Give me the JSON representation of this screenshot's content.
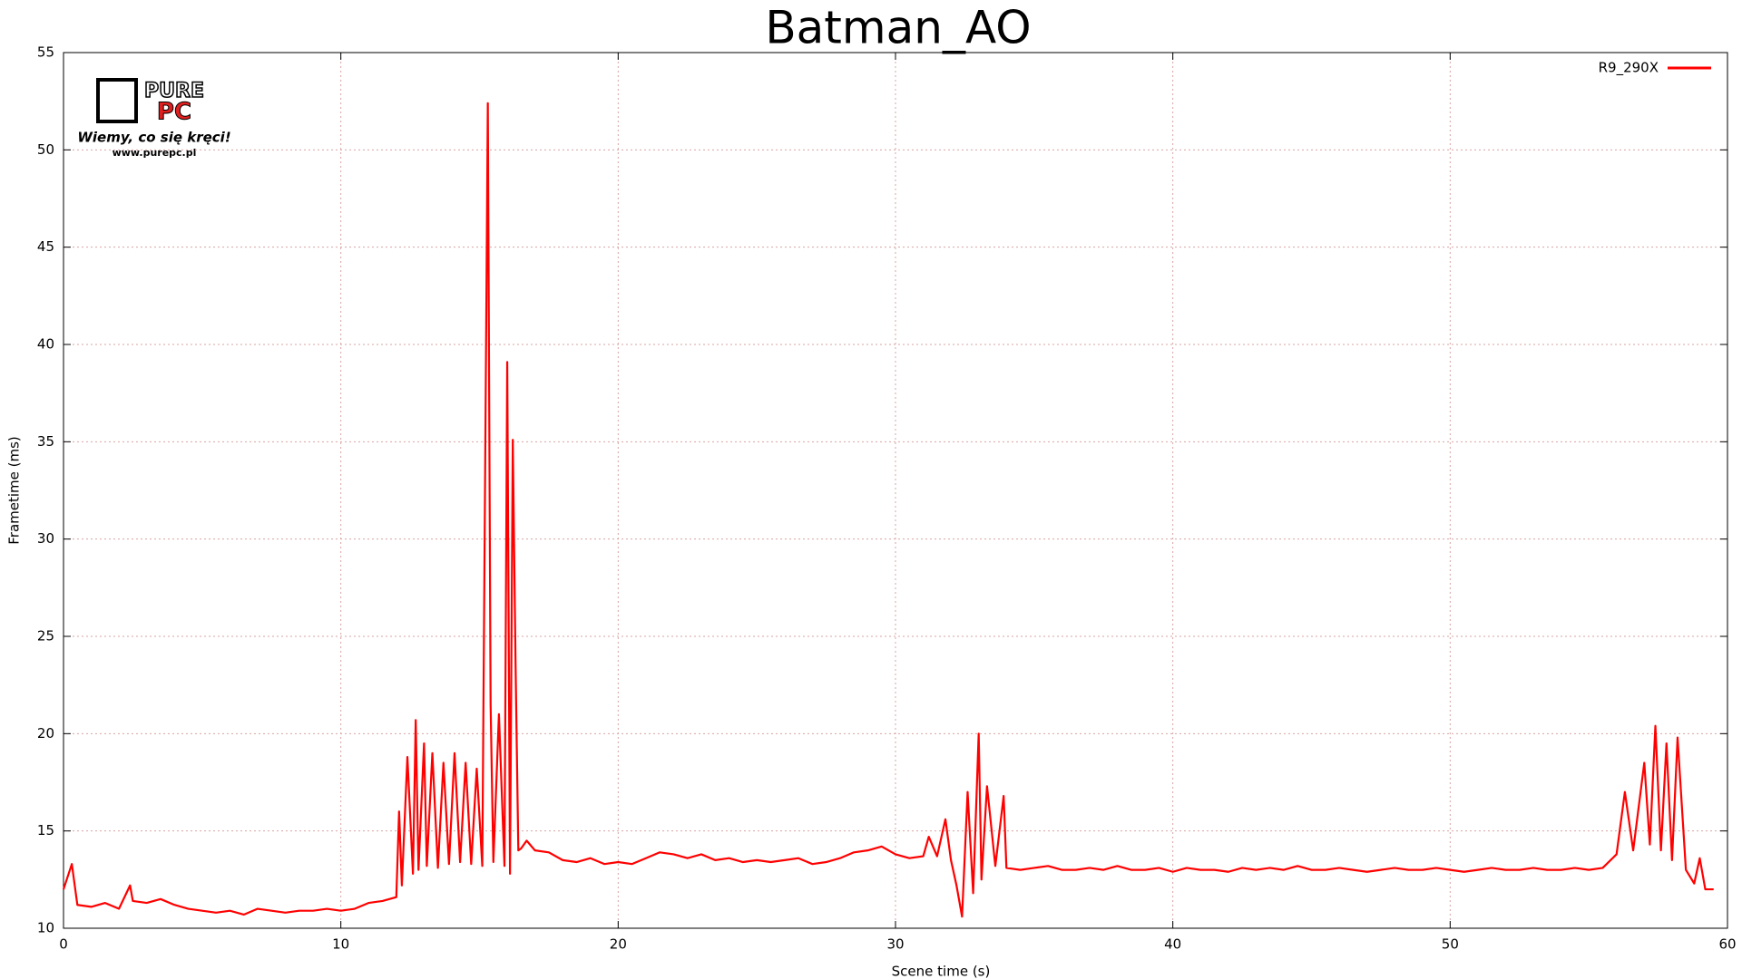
{
  "chart_data": {
    "type": "line",
    "title": "Batman_AO",
    "x_label": "Scene time (s)",
    "y_label": "Frametime (ms)",
    "xlim": [
      0,
      60
    ],
    "ylim": [
      10,
      55
    ],
    "xticks": [
      0,
      10,
      20,
      30,
      40,
      50,
      60
    ],
    "yticks": [
      10,
      15,
      20,
      25,
      30,
      35,
      40,
      45,
      50,
      55
    ],
    "grid": true,
    "legend": "top-right",
    "x": [
      0,
      0.3,
      0.5,
      1,
      1.5,
      2,
      2.4,
      2.5,
      3,
      3.5,
      4,
      4.5,
      5,
      5.5,
      6,
      6.5,
      7,
      7.5,
      8,
      8.5,
      9,
      9.5,
      10,
      10.5,
      11,
      11.5,
      12,
      12.1,
      12.2,
      12.4,
      12.6,
      12.7,
      12.8,
      13,
      13.1,
      13.3,
      13.5,
      13.7,
      13.9,
      14.1,
      14.3,
      14.5,
      14.7,
      14.9,
      15.1,
      15.3,
      15.4,
      15.5,
      15.7,
      15.9,
      16,
      16.1,
      16.2,
      16.3,
      16.4,
      16.5,
      16.7,
      17,
      17.5,
      18,
      18.5,
      19,
      19.5,
      20,
      20.5,
      21,
      21.5,
      22,
      22.5,
      23,
      23.5,
      24,
      24.5,
      25,
      25.5,
      26,
      26.5,
      27,
      27.5,
      28,
      28.5,
      29,
      29.5,
      30,
      30.5,
      31,
      31.2,
      31.5,
      31.8,
      32,
      32.2,
      32.4,
      32.6,
      32.8,
      33,
      33.1,
      33.3,
      33.6,
      33.9,
      34,
      34.5,
      35,
      35.5,
      36,
      36.5,
      37,
      37.5,
      38,
      38.5,
      39,
      39.5,
      40,
      40.5,
      41,
      41.5,
      42,
      42.5,
      43,
      43.5,
      44,
      44.5,
      45,
      45.5,
      46,
      46.5,
      47,
      47.5,
      48,
      48.5,
      49,
      49.5,
      50,
      50.5,
      51,
      51.5,
      52,
      52.5,
      53,
      53.5,
      54,
      54.5,
      55,
      55.5,
      56,
      56.3,
      56.6,
      57,
      57.2,
      57.4,
      57.6,
      57.8,
      58,
      58.2,
      58.5,
      58.8,
      59,
      59.2,
      59.5
    ],
    "series": [
      {
        "name": "R9_290X",
        "color": "#ff0000",
        "values": [
          12.0,
          13.3,
          11.2,
          11.1,
          11.3,
          11.0,
          12.2,
          11.4,
          11.3,
          11.5,
          11.2,
          11.0,
          10.9,
          10.8,
          10.9,
          10.7,
          11.0,
          10.9,
          10.8,
          10.9,
          10.9,
          11.0,
          10.9,
          11.0,
          11.3,
          11.4,
          11.6,
          16.0,
          12.2,
          18.8,
          12.8,
          20.7,
          13.0,
          19.5,
          13.2,
          19.0,
          13.1,
          18.5,
          13.3,
          19.0,
          13.4,
          18.5,
          13.3,
          18.2,
          13.2,
          52.4,
          21.5,
          13.4,
          21.0,
          13.2,
          39.1,
          12.8,
          35.1,
          23.6,
          14.0,
          14.1,
          14.5,
          14.0,
          13.9,
          13.5,
          13.4,
          13.6,
          13.3,
          13.4,
          13.3,
          13.6,
          13.9,
          13.8,
          13.6,
          13.8,
          13.5,
          13.6,
          13.4,
          13.5,
          13.4,
          13.5,
          13.6,
          13.3,
          13.4,
          13.6,
          13.9,
          14.0,
          14.2,
          13.8,
          13.6,
          13.7,
          14.7,
          13.7,
          15.6,
          13.5,
          12.2,
          10.6,
          17.0,
          11.8,
          20.0,
          12.5,
          17.3,
          13.2,
          16.8,
          13.1,
          13.0,
          13.1,
          13.2,
          13.0,
          13.0,
          13.1,
          13.0,
          13.2,
          13.0,
          13.0,
          13.1,
          12.9,
          13.1,
          13.0,
          13.0,
          12.9,
          13.1,
          13.0,
          13.1,
          13.0,
          13.2,
          13.0,
          13.0,
          13.1,
          13.0,
          12.9,
          13.0,
          13.1,
          13.0,
          13.0,
          13.1,
          13.0,
          12.9,
          13.0,
          13.1,
          13.0,
          13.0,
          13.1,
          13.0,
          13.0,
          13.1,
          13.0,
          13.1,
          13.8,
          17.0,
          14.0,
          18.5,
          14.3,
          20.4,
          14.0,
          19.5,
          13.5,
          19.8,
          13.0,
          12.3,
          13.6,
          12.0,
          12.0
        ]
      }
    ]
  },
  "logo": {
    "brand_top": "PURE",
    "brand_bottom": "PC",
    "tagline": "Wiemy, co się kręci!",
    "url": "www.purepc.pl"
  }
}
